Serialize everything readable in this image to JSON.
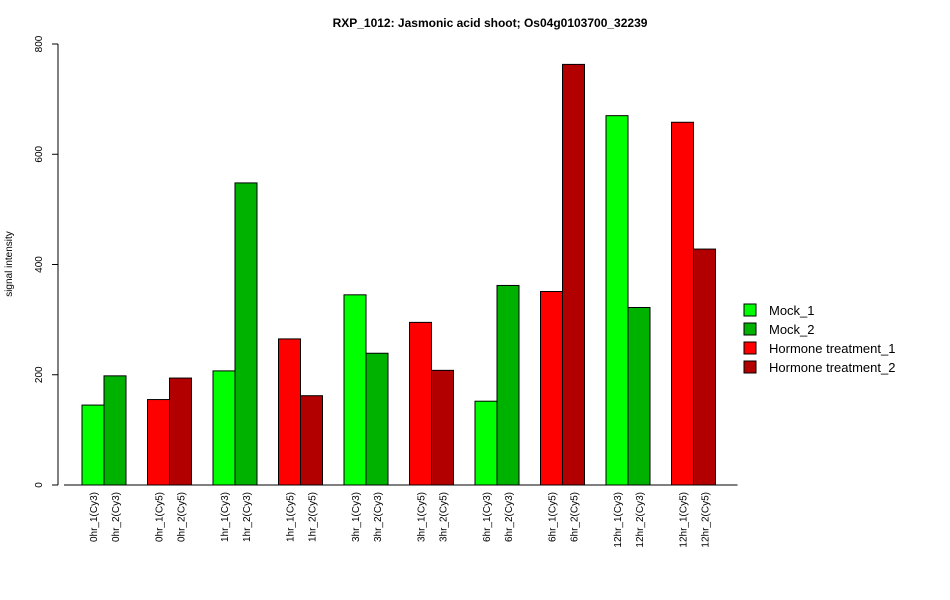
{
  "chart_data": {
    "type": "bar",
    "title": "RXP_1012: Jasmonic acid shoot; Os04g0103700_32239",
    "xlabel": "",
    "ylabel": "signal intensity",
    "ylim": [
      0,
      800
    ],
    "yticks": [
      0,
      200,
      400,
      600,
      800
    ],
    "legend_position": "right",
    "legend": [
      {
        "name": "Mock_1",
        "color": "#00ff00"
      },
      {
        "name": "Mock_2",
        "color": "#00b200"
      },
      {
        "name": "Hormone treatment_1",
        "color": "#ff0000"
      },
      {
        "name": "Hormone treatment_2",
        "color": "#b20000"
      }
    ],
    "groups": [
      {
        "bars": [
          {
            "label": "0hr_1(Cy3)",
            "value": 145,
            "series": 0
          },
          {
            "label": "0hr_2(Cy3)",
            "value": 198,
            "series": 1
          }
        ]
      },
      {
        "bars": [
          {
            "label": "0hr_1(Cy5)",
            "value": 155,
            "series": 2
          },
          {
            "label": "0hr_2(Cy5)",
            "value": 194,
            "series": 3
          }
        ]
      },
      {
        "bars": [
          {
            "label": "1hr_1(Cy3)",
            "value": 207,
            "series": 0
          },
          {
            "label": "1hr_2(Cy3)",
            "value": 548,
            "series": 1
          }
        ]
      },
      {
        "bars": [
          {
            "label": "1hr_1(Cy5)",
            "value": 265,
            "series": 2
          },
          {
            "label": "1hr_2(Cy5)",
            "value": 162,
            "series": 3
          }
        ]
      },
      {
        "bars": [
          {
            "label": "3hr_1(Cy3)",
            "value": 345,
            "series": 0
          },
          {
            "label": "3hr_2(Cy3)",
            "value": 239,
            "series": 1
          }
        ]
      },
      {
        "bars": [
          {
            "label": "3hr_1(Cy5)",
            "value": 295,
            "series": 2
          },
          {
            "label": "3hr_2(Cy5)",
            "value": 208,
            "series": 3
          }
        ]
      },
      {
        "bars": [
          {
            "label": "6hr_1(Cy3)",
            "value": 152,
            "series": 0
          },
          {
            "label": "6hr_2(Cy3)",
            "value": 362,
            "series": 1
          }
        ]
      },
      {
        "bars": [
          {
            "label": "6hr_1(Cy5)",
            "value": 351,
            "series": 2
          },
          {
            "label": "6hr_2(Cy5)",
            "value": 763,
            "series": 3
          }
        ]
      },
      {
        "bars": [
          {
            "label": "12hr_1(Cy3)",
            "value": 670,
            "series": 0
          },
          {
            "label": "12hr_2(Cy3)",
            "value": 322,
            "series": 1
          }
        ]
      },
      {
        "bars": [
          {
            "label": "12hr_1(Cy5)",
            "value": 658,
            "series": 2
          },
          {
            "label": "12hr_2(Cy5)",
            "value": 428,
            "series": 3
          }
        ]
      }
    ]
  }
}
